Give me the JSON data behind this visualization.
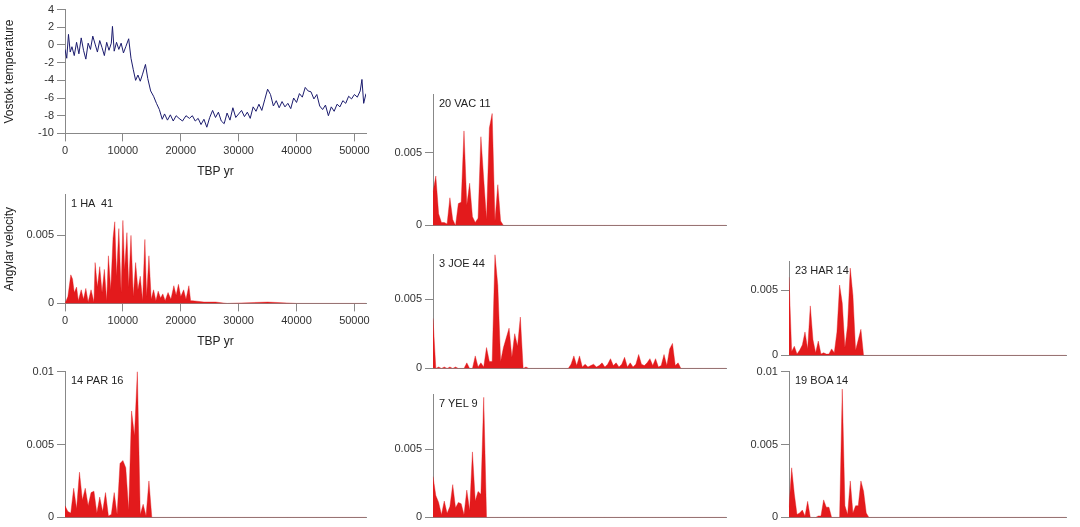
{
  "chart_data": [
    {
      "type": "line",
      "xlabel": "TBP yr",
      "ylabel": "Vostok temperature",
      "color": "#1c1c6e",
      "marker": "none",
      "line_style": "solid",
      "xlim": [
        0,
        52000
      ],
      "ylim": [
        -10,
        4
      ],
      "xticks": [
        0,
        10000,
        20000,
        30000,
        40000,
        50000
      ],
      "yticks": [
        -10,
        -8,
        -6,
        -4,
        -2,
        0,
        2,
        4
      ],
      "x": [
        0,
        300,
        600,
        900,
        1200,
        1600,
        2000,
        2400,
        2800,
        3200,
        3600,
        4000,
        4400,
        4800,
        5200,
        5600,
        6000,
        6400,
        6800,
        7200,
        7600,
        8000,
        8200,
        8500,
        8900,
        9300,
        9700,
        10100,
        10500,
        11000,
        11400,
        11800,
        12200,
        12600,
        13000,
        13400,
        13900,
        14300,
        14800,
        15300,
        15800,
        16300,
        16800,
        17200,
        17700,
        18200,
        18700,
        19200,
        19700,
        20300,
        20900,
        21500,
        22000,
        22500,
        23000,
        23500,
        24000,
        24500,
        25000,
        25500,
        26000,
        26500,
        27000,
        27500,
        28000,
        28500,
        29000,
        29500,
        30000,
        30500,
        31000,
        31500,
        32000,
        32500,
        33000,
        33500,
        34000,
        34500,
        35000,
        35500,
        36000,
        36500,
        37000,
        37500,
        38000,
        38500,
        39000,
        39500,
        40000,
        40500,
        41000,
        41500,
        42000,
        42500,
        43000,
        43500,
        44000,
        44500,
        45000,
        45500,
        46000,
        46500,
        47000,
        47500,
        48000,
        48500,
        49000,
        49500,
        50000,
        50500,
        51000,
        51300,
        51600,
        52000
      ],
      "values": [
        -0.5,
        -1.5,
        1.2,
        -0.8,
        -0.2,
        -1.2,
        0.3,
        -1.0,
        0.8,
        -0.6,
        -1.6,
        0.2,
        -0.5,
        1.0,
        0.1,
        -0.8,
        0.5,
        -0.3,
        -1.2,
        0.3,
        -0.6,
        0.2,
        2.1,
        -0.7,
        0.3,
        -0.5,
        0.2,
        -0.9,
        -0.2,
        0.7,
        -1.5,
        -2.8,
        -4.0,
        -3.4,
        -4.1,
        -3.3,
        -2.2,
        -3.8,
        -5.2,
        -5.8,
        -6.6,
        -7.3,
        -8.4,
        -7.8,
        -8.5,
        -7.9,
        -8.6,
        -8.0,
        -8.3,
        -8.6,
        -8.0,
        -8.3,
        -8.0,
        -8.6,
        -8.3,
        -9.0,
        -8.4,
        -9.3,
        -8.2,
        -7.4,
        -8.2,
        -7.6,
        -8.6,
        -8.9,
        -7.7,
        -8.5,
        -7.1,
        -8.2,
        -7.8,
        -7.4,
        -8.1,
        -7.6,
        -8.3,
        -7.0,
        -7.5,
        -6.7,
        -7.4,
        -6.2,
        -5.0,
        -5.6,
        -6.9,
        -6.3,
        -7.1,
        -6.4,
        -7.0,
        -6.6,
        -7.2,
        -6.0,
        -6.5,
        -5.5,
        -5.9,
        -4.8,
        -5.2,
        -5.3,
        -6.1,
        -5.6,
        -6.9,
        -7.3,
        -6.8,
        -8.0,
        -7.0,
        -7.5,
        -6.7,
        -7.0,
        -6.3,
        -6.6,
        -5.8,
        -6.1,
        -5.6,
        -5.9,
        -5.2,
        -3.9,
        -6.6,
        -5.5
      ]
    },
    {
      "type": "area",
      "title": "1 HA  41",
      "xlabel": "TBP yr",
      "ylabel": "Angylar velocity",
      "color": "#e31a1c",
      "marker": "none",
      "line_style": "solid",
      "xlim": [
        0,
        52000
      ],
      "ylim": [
        0,
        0.008
      ],
      "xticks": [
        0,
        10000,
        20000,
        30000,
        40000,
        50000
      ],
      "yticks": [
        0,
        0.005
      ],
      "x": [
        0,
        500,
        1000,
        1300,
        1600,
        2000,
        2300,
        2800,
        3200,
        3600,
        4000,
        4500,
        5000,
        5200,
        5600,
        6000,
        6400,
        6800,
        7200,
        7500,
        7900,
        8300,
        8600,
        8900,
        9300,
        9700,
        10000,
        10300,
        10700,
        11000,
        11400,
        11800,
        12200,
        12600,
        13000,
        13400,
        13800,
        14100,
        14500,
        14900,
        15300,
        15700,
        16100,
        16500,
        16900,
        17300,
        17800,
        18300,
        18800,
        19200,
        19600,
        20000,
        20500,
        20900,
        21400,
        21700,
        22000,
        24000,
        26000,
        28000,
        35000,
        40000,
        52000
      ],
      "values": [
        0,
        0.0005,
        0.0021,
        0.0018,
        0.0008,
        0.0012,
        0.0002,
        0.001,
        0.0003,
        0.0011,
        0.0001,
        0.001,
        0.0001,
        0.003,
        0.0012,
        0.0027,
        0.0008,
        0.0025,
        0.0002,
        0.0035,
        0.001,
        0.0048,
        0.006,
        0.002,
        0.0055,
        0.0008,
        0.0061,
        0.0025,
        0.0052,
        0.0012,
        0.005,
        0.0005,
        0.003,
        0.001,
        0.002,
        0.0002,
        0.0047,
        0.0005,
        0.0035,
        0.0003,
        0.001,
        0.0002,
        0.0009,
        0.0004,
        0.0007,
        0.0002,
        0.0008,
        0.0003,
        0.0013,
        0.0006,
        0.0014,
        0.0005,
        0.001,
        0.0003,
        0.0013,
        0.0002,
        0.0002,
        0.0001,
        0.0001,
        0,
        0.0001,
        0,
        0
      ]
    },
    {
      "type": "area",
      "title": "14 PAR 16",
      "color": "#e31a1c",
      "marker": "none",
      "line_style": "solid",
      "tick_labels": "y",
      "ylim": [
        0,
        0.01
      ],
      "yticks": [
        0,
        0.005,
        0.01
      ],
      "categories": [
        null,
        null,
        null,
        null,
        null,
        null,
        null,
        null,
        null,
        null,
        null,
        null,
        null,
        null,
        null,
        null,
        null,
        null,
        null,
        null,
        null,
        null,
        null,
        null,
        null,
        null,
        null,
        null,
        null,
        null,
        null,
        null,
        null,
        null,
        null,
        null,
        null,
        null,
        null,
        null,
        null,
        null,
        null,
        null,
        null,
        null,
        null,
        null,
        null,
        null,
        null,
        null,
        null,
        null,
        null,
        null,
        null,
        null,
        null,
        null,
        null,
        null,
        null,
        null,
        null,
        null,
        null,
        null,
        null,
        null,
        null,
        null,
        null,
        null,
        null,
        null,
        null,
        null,
        null,
        null,
        null,
        null,
        null,
        null,
        null,
        null,
        null,
        null,
        null,
        null,
        null,
        null,
        null,
        null,
        null,
        null,
        null,
        null,
        null,
        null,
        null,
        null,
        null,
        null,
        null
      ],
      "values": [
        0.0008,
        0.0004,
        0.0003,
        0.002,
        0.0006,
        0.0031,
        0.0012,
        0.002,
        0.0008,
        0.0017,
        0.0018,
        0.0003,
        0.0014,
        0.0004,
        0.0017,
        0.0001,
        0.0002,
        0.0017,
        0.0002,
        0.0037,
        0.0039,
        0.0034,
        0.0005,
        0.0073,
        0.0056,
        0.01,
        0.0002,
        0.0009,
        0.0001,
        0.0025,
        0,
        0,
        0,
        0,
        0,
        0,
        0,
        0,
        0,
        0,
        0,
        0,
        0,
        0,
        0,
        0,
        0,
        0,
        0,
        0,
        0,
        0,
        0,
        0,
        0,
        0,
        0,
        0,
        0,
        0,
        0,
        0,
        0,
        0,
        0,
        0,
        0,
        0,
        0,
        0,
        0,
        0,
        0,
        0,
        0,
        0,
        0,
        0,
        0,
        0,
        0,
        0,
        0,
        0,
        0,
        0,
        0,
        0,
        0,
        0,
        0,
        0,
        0,
        0,
        0,
        0,
        0,
        0,
        0,
        0,
        0,
        0,
        0,
        0,
        0
      ]
    },
    {
      "type": "area",
      "title": "20 VAC 11",
      "color": "#e31a1c",
      "marker": "none",
      "line_style": "solid",
      "tick_labels": "y",
      "ylim": [
        0,
        0.009
      ],
      "yticks": [
        0,
        0.005
      ],
      "categories": [
        null,
        null,
        null,
        null,
        null,
        null,
        null,
        null,
        null,
        null,
        null,
        null,
        null,
        null,
        null,
        null,
        null,
        null,
        null,
        null,
        null,
        null,
        null,
        null,
        null,
        null,
        null,
        null,
        null,
        null,
        null,
        null,
        null,
        null,
        null,
        null,
        null,
        null,
        null,
        null,
        null,
        null,
        null,
        null,
        null,
        null,
        null,
        null,
        null,
        null,
        null,
        null,
        null,
        null,
        null,
        null,
        null,
        null,
        null,
        null,
        null,
        null,
        null,
        null,
        null,
        null,
        null,
        null,
        null,
        null,
        null,
        null,
        null,
        null,
        null,
        null,
        null,
        null,
        null,
        null,
        null,
        null,
        null,
        null,
        null,
        null,
        null,
        null,
        null,
        null,
        null,
        null,
        null,
        null,
        null,
        null,
        null,
        null,
        null,
        null,
        null,
        null,
        null,
        null,
        null
      ],
      "values": [
        0.0023,
        0.0034,
        0.0008,
        0.0002,
        0.0002,
        0.0001,
        0.0019,
        0.0004,
        0,
        0.0015,
        0.0016,
        0.0065,
        0.0014,
        0.0029,
        0.0006,
        0.0002,
        0.0005,
        0.0061,
        0.0032,
        0.0004,
        0.0067,
        0.0077,
        0.0003,
        0.0028,
        0.0003,
        0,
        0,
        0,
        0,
        0,
        0,
        0,
        0,
        0,
        0,
        0,
        0,
        0,
        0,
        0,
        0,
        0,
        0,
        0,
        0,
        0,
        0,
        0,
        0,
        0,
        0,
        0,
        0,
        0,
        0,
        0,
        0,
        0,
        0,
        0,
        0,
        0,
        0,
        0,
        0,
        0,
        0,
        0,
        0,
        0,
        0,
        0,
        0,
        0,
        0,
        0,
        0,
        0,
        0,
        0,
        0,
        0,
        0,
        0,
        0,
        0,
        0,
        0,
        0,
        0,
        0,
        0,
        0,
        0,
        0,
        0,
        0,
        0,
        0,
        0,
        0,
        0,
        0,
        0,
        0
      ]
    },
    {
      "type": "area",
      "title": "3 JOE 44",
      "color": "#e31a1c",
      "marker": "none",
      "line_style": "solid",
      "tick_labels": "y",
      "ylim": [
        0,
        0.0082
      ],
      "yticks": [
        0,
        0.005
      ],
      "categories": [
        null,
        null,
        null,
        null,
        null,
        null,
        null,
        null,
        null,
        null,
        null,
        null,
        null,
        null,
        null,
        null,
        null,
        null,
        null,
        null,
        null,
        null,
        null,
        null,
        null,
        null,
        null,
        null,
        null,
        null,
        null,
        null,
        null,
        null,
        null,
        null,
        null,
        null,
        null,
        null,
        null,
        null,
        null,
        null,
        null,
        null,
        null,
        null,
        null,
        null,
        null,
        null,
        null,
        null,
        null,
        null,
        null,
        null,
        null,
        null,
        null,
        null,
        null,
        null,
        null,
        null,
        null,
        null,
        null,
        null,
        null,
        null,
        null,
        null,
        null,
        null,
        null,
        null,
        null,
        null,
        null,
        null,
        null,
        null,
        null,
        null,
        null,
        null,
        null,
        null,
        null,
        null,
        null,
        null,
        null,
        null,
        null,
        null,
        null,
        null,
        null,
        null,
        null,
        null,
        null
      ],
      "values": [
        0.0036,
        0,
        0.0001,
        0,
        0.0001,
        0,
        0.0001,
        0,
        0.0001,
        0,
        0,
        0,
        0.0004,
        0,
        0,
        0.0009,
        0.0001,
        0.0004,
        0.0001,
        0.0015,
        0.0005,
        0.0005,
        0.0082,
        0.006,
        0.0005,
        0.0015,
        0.0022,
        0.0029,
        0.0008,
        0.0025,
        0.0016,
        0.0037,
        0,
        0.0001,
        0,
        0,
        0,
        0,
        0,
        0,
        0,
        0,
        0,
        0,
        0,
        0,
        0,
        0,
        0,
        0.0003,
        0.0009,
        0.0002,
        0.0009,
        0.0001,
        0.0003,
        0.0001,
        0.0002,
        0.0003,
        0.0001,
        0.0002,
        0.0004,
        0.0001,
        0.0003,
        0.0007,
        0.0002,
        0.0004,
        0.0001,
        0.0003,
        0.0008,
        0.0001,
        0.0004,
        0.0001,
        0.0003,
        0.001,
        0.0003,
        0.0002,
        0.0004,
        0.0007,
        0.0002,
        0.0007,
        0.0001,
        0.0002,
        0.001,
        0.0002,
        0.0014,
        0.0018,
        0.0002,
        0.0004,
        0,
        0,
        0,
        0,
        0,
        0,
        0,
        0,
        0,
        0,
        0,
        0,
        0,
        0,
        0,
        0,
        0
      ]
    },
    {
      "type": "area",
      "title": "7 YEL 9",
      "color": "#e31a1c",
      "marker": "none",
      "line_style": "solid",
      "tick_labels": "y",
      "ylim": [
        0,
        0.009
      ],
      "yticks": [
        0,
        0.005
      ],
      "categories": [
        null,
        null,
        null,
        null,
        null,
        null,
        null,
        null,
        null,
        null,
        null,
        null,
        null,
        null,
        null,
        null,
        null,
        null,
        null,
        null,
        null,
        null,
        null,
        null,
        null,
        null,
        null,
        null,
        null,
        null,
        null,
        null,
        null,
        null,
        null,
        null,
        null,
        null,
        null,
        null,
        null,
        null,
        null,
        null,
        null,
        null,
        null,
        null,
        null,
        null,
        null,
        null,
        null,
        null,
        null,
        null,
        null,
        null,
        null,
        null,
        null,
        null,
        null,
        null,
        null,
        null,
        null,
        null,
        null,
        null,
        null,
        null,
        null,
        null,
        null,
        null,
        null,
        null,
        null,
        null,
        null,
        null,
        null,
        null,
        null,
        null,
        null,
        null,
        null,
        null,
        null,
        null,
        null,
        null,
        null,
        null,
        null,
        null,
        null,
        null,
        null,
        null,
        null,
        null,
        null
      ],
      "values": [
        0.003,
        0.0016,
        0.0011,
        0.0002,
        0.0012,
        0.0003,
        0.0008,
        0.0024,
        0.0007,
        0.0011,
        0.001,
        0.0002,
        0.002,
        0.0005,
        0.0048,
        0.0012,
        0.0019,
        0.0017,
        0.0088,
        0,
        0,
        0,
        0,
        0,
        0,
        0,
        0,
        0,
        0,
        0,
        0,
        0,
        0,
        0,
        0,
        0,
        0,
        0,
        0,
        0,
        0,
        0,
        0,
        0,
        0,
        0,
        0,
        0,
        0,
        0,
        0,
        0,
        0,
        0,
        0,
        0,
        0,
        0,
        0,
        0,
        0,
        0,
        0,
        0,
        0,
        0,
        0,
        0,
        0,
        0,
        0,
        0,
        0,
        0,
        0,
        0,
        0,
        0,
        0,
        0,
        0,
        0,
        0,
        0,
        0,
        0,
        0,
        0,
        0,
        0,
        0,
        0,
        0,
        0,
        0,
        0,
        0,
        0,
        0,
        0,
        0,
        0,
        0,
        0,
        0
      ]
    },
    {
      "type": "area",
      "title": "23 HAR 14",
      "color": "#e31a1c",
      "marker": "none",
      "line_style": "solid",
      "tick_labels": "y",
      "ylim": [
        0,
        0.0072
      ],
      "yticks": [
        0,
        0.005
      ],
      "categories": [
        null,
        null,
        null,
        null,
        null,
        null,
        null,
        null,
        null,
        null,
        null,
        null,
        null,
        null,
        null,
        null,
        null,
        null,
        null,
        null,
        null,
        null,
        null,
        null,
        null,
        null,
        null,
        null,
        null,
        null,
        null,
        null,
        null,
        null,
        null,
        null,
        null,
        null,
        null,
        null,
        null,
        null,
        null,
        null,
        null,
        null,
        null,
        null,
        null,
        null,
        null,
        null,
        null,
        null,
        null,
        null,
        null,
        null,
        null,
        null,
        null,
        null,
        null,
        null,
        null,
        null,
        null,
        null,
        null,
        null,
        null,
        null,
        null,
        null,
        null,
        null,
        null,
        null,
        null,
        null,
        null,
        null,
        null,
        null,
        null,
        null,
        null,
        null,
        null,
        null,
        null,
        null,
        null,
        null,
        null,
        null,
        null,
        null,
        null,
        null,
        null,
        null,
        null,
        null,
        null
      ],
      "values": [
        0.006,
        0.0003,
        0.0007,
        0.0001,
        0.0004,
        0.0008,
        0.0018,
        0.0005,
        0.0038,
        0.0012,
        0.0002,
        0.0011,
        0.0001,
        0.0002,
        0.0001,
        0.0001,
        0.0005,
        0.0002,
        0.0018,
        0.0054,
        0.004,
        0.0006,
        0.0023,
        0.0067,
        0.0046,
        0.0004,
        0.0012,
        0.002,
        0,
        0,
        0,
        0,
        0,
        0,
        0,
        0,
        0,
        0,
        0,
        0,
        0,
        0,
        0,
        0,
        0,
        0,
        0,
        0,
        0,
        0,
        0,
        0,
        0,
        0,
        0,
        0,
        0,
        0,
        0,
        0,
        0,
        0,
        0,
        0,
        0,
        0,
        0,
        0,
        0,
        0,
        0,
        0,
        0,
        0,
        0,
        0,
        0,
        0,
        0,
        0,
        0,
        0,
        0,
        0,
        0,
        0,
        0,
        0,
        0,
        0,
        0,
        0,
        0,
        0,
        0,
        0,
        0,
        0,
        0,
        0,
        0,
        0,
        0,
        0,
        0
      ]
    },
    {
      "type": "area",
      "title": "19 BOA 14",
      "color": "#e31a1c",
      "marker": "none",
      "line_style": "solid",
      "tick_labels": "y",
      "ylim": [
        0,
        0.01
      ],
      "yticks": [
        0,
        0.005,
        0.01
      ],
      "categories": [
        null,
        null,
        null,
        null,
        null,
        null,
        null,
        null,
        null,
        null,
        null,
        null,
        null,
        null,
        null,
        null,
        null,
        null,
        null,
        null,
        null,
        null,
        null,
        null,
        null,
        null,
        null,
        null,
        null,
        null,
        null,
        null,
        null,
        null,
        null,
        null,
        null,
        null,
        null,
        null,
        null,
        null,
        null,
        null,
        null,
        null,
        null,
        null,
        null,
        null,
        null,
        null,
        null,
        null,
        null,
        null,
        null,
        null,
        null,
        null,
        null,
        null,
        null,
        null,
        null,
        null,
        null,
        null,
        null,
        null,
        null,
        null,
        null,
        null,
        null,
        null,
        null,
        null,
        null,
        null,
        null,
        null,
        null,
        null,
        null,
        null,
        null,
        null,
        null,
        null,
        null,
        null,
        null,
        null,
        null,
        null,
        null,
        null,
        null,
        null,
        null,
        null,
        null,
        null,
        null
      ],
      "values": [
        0.0007,
        0.0034,
        0.0016,
        0.0002,
        0.0003,
        0.0005,
        0.0001,
        0.0011,
        0,
        0,
        0,
        0.0001,
        0.0001,
        0.0012,
        0.0007,
        0.0007,
        0,
        0,
        0,
        0,
        0.0088,
        0.0008,
        0.0002,
        0.0025,
        0.0003,
        0.0008,
        0.0008,
        0.0025,
        0.0018,
        0.0003,
        0,
        0,
        0,
        0,
        0,
        0,
        0,
        0,
        0,
        0,
        0,
        0,
        0,
        0,
        0,
        0,
        0,
        0,
        0,
        0,
        0,
        0,
        0,
        0,
        0,
        0,
        0,
        0,
        0,
        0,
        0,
        0,
        0,
        0,
        0,
        0,
        0,
        0,
        0,
        0,
        0,
        0,
        0,
        0,
        0,
        0,
        0,
        0,
        0,
        0,
        0,
        0,
        0,
        0,
        0,
        0,
        0,
        0,
        0,
        0,
        0,
        0,
        0,
        0,
        0,
        0,
        0,
        0,
        0,
        0,
        0,
        0,
        0,
        0,
        0
      ]
    }
  ]
}
